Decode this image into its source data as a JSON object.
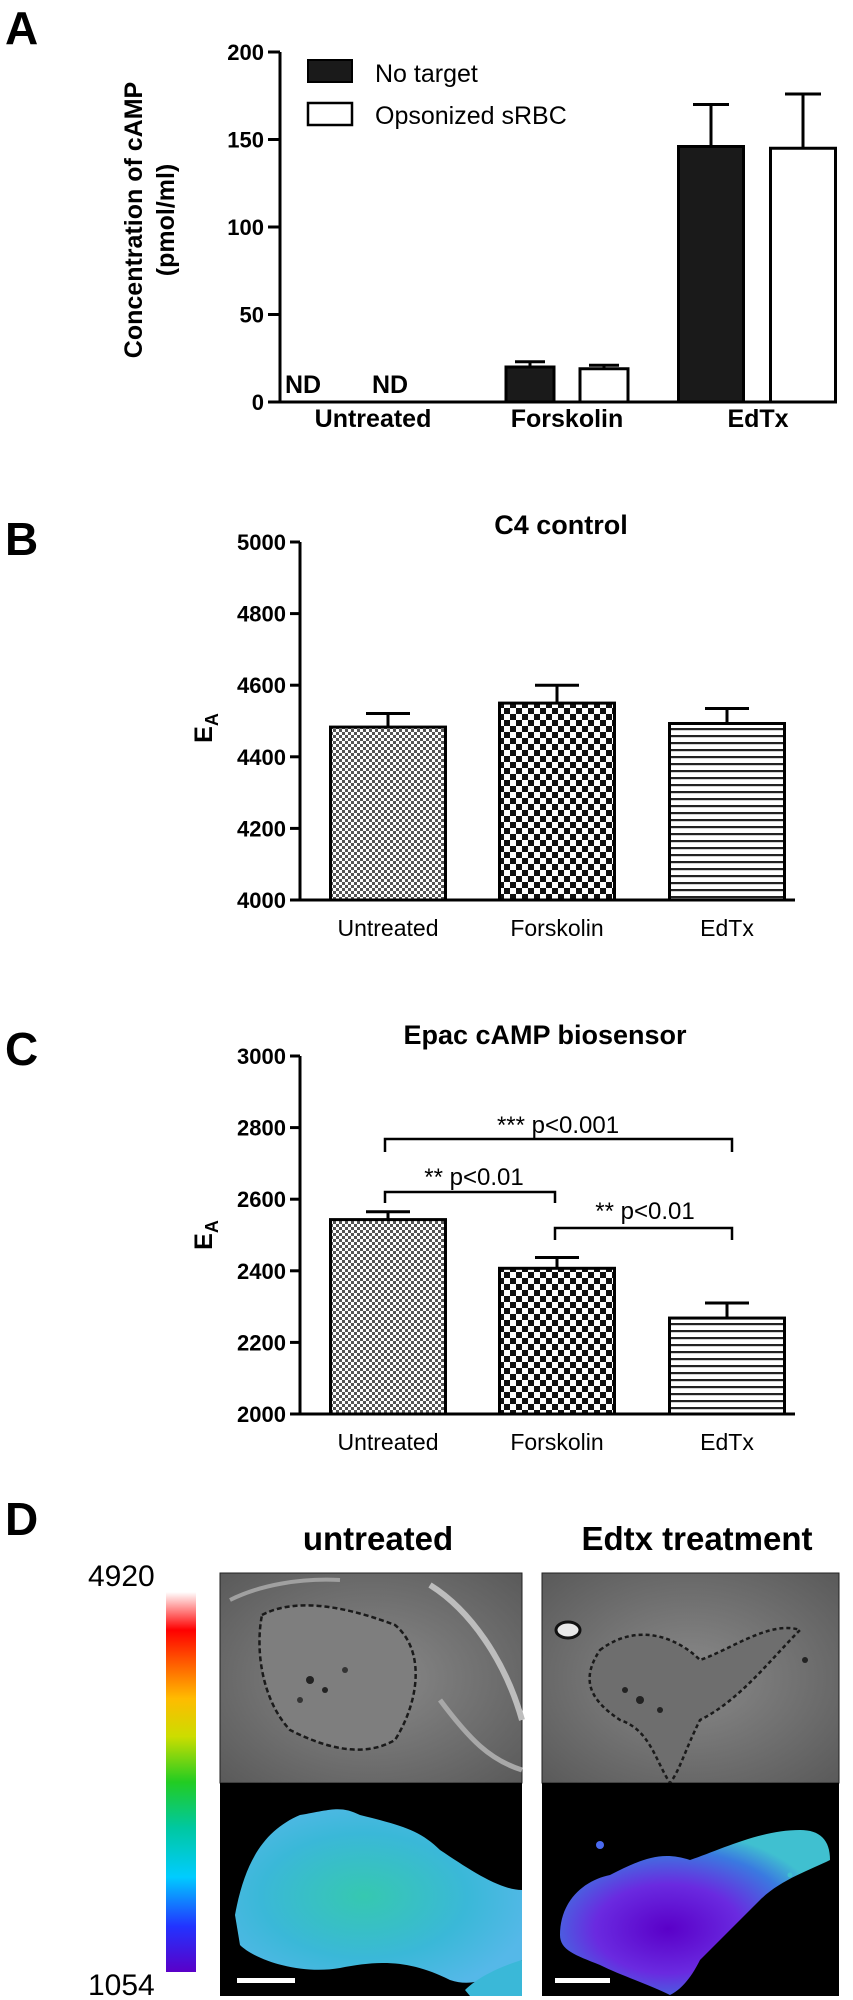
{
  "panels": {
    "a": "A",
    "b": "B",
    "c": "C",
    "d": "D"
  },
  "chart_data": [
    {
      "type": "bar",
      "ylabel_line1": "Concentration of cAMP",
      "ylabel_line2": "(pmol/ml)",
      "ylim": [
        0,
        200
      ],
      "yticks": [
        "0",
        "50",
        "100",
        "150",
        "200"
      ],
      "categories": [
        "Untreated",
        "Forskolin",
        "EdTx"
      ],
      "series": [
        {
          "name": "No target",
          "values": [
            null,
            20,
            146
          ],
          "errors": [
            null,
            3,
            24
          ],
          "color": "#1a1a1a"
        },
        {
          "name": "Opsonized sRBC",
          "values": [
            null,
            19,
            145
          ],
          "errors": [
            null,
            2,
            31
          ],
          "color": "#ffffff"
        }
      ],
      "annotations": [
        "ND",
        "ND"
      ],
      "legend_position": "top-left",
      "grid": false
    },
    {
      "type": "bar",
      "title": "C4 control",
      "ylabel": "E",
      "ylabel_sub": "A",
      "ylim": [
        4000,
        5000
      ],
      "yticks": [
        "4000",
        "4200",
        "4400",
        "4600",
        "4800",
        "5000"
      ],
      "categories": [
        "Untreated",
        "Forskolin",
        "EdTx"
      ],
      "values": [
        4483,
        4550,
        4493
      ],
      "errors": [
        38,
        50,
        42
      ],
      "patterns": [
        "fine-checker",
        "checker",
        "horizontal-lines"
      ],
      "grid": false
    },
    {
      "type": "bar",
      "title": "Epac cAMP biosensor",
      "ylabel": "E",
      "ylabel_sub": "A",
      "ylim": [
        2000,
        3000
      ],
      "yticks": [
        "2000",
        "2200",
        "2400",
        "2600",
        "2800",
        "3000"
      ],
      "categories": [
        "Untreated",
        "Forskolin",
        "EdTx"
      ],
      "values": [
        2543,
        2407,
        2268
      ],
      "errors": [
        22,
        30,
        42
      ],
      "patterns": [
        "fine-checker",
        "checker",
        "horizontal-lines"
      ],
      "significance": [
        {
          "label": "*** p<0.001",
          "from": 0,
          "to": 2
        },
        {
          "label": "** p<0.01",
          "from": 0,
          "to": 1
        },
        {
          "label": "** p<0.01",
          "from": 1,
          "to": 2
        }
      ],
      "grid": false
    }
  ],
  "panel_d": {
    "colorbar_max": "4920",
    "colorbar_min": "1054",
    "image_titles": [
      "untreated",
      "Edtx treatment"
    ]
  }
}
